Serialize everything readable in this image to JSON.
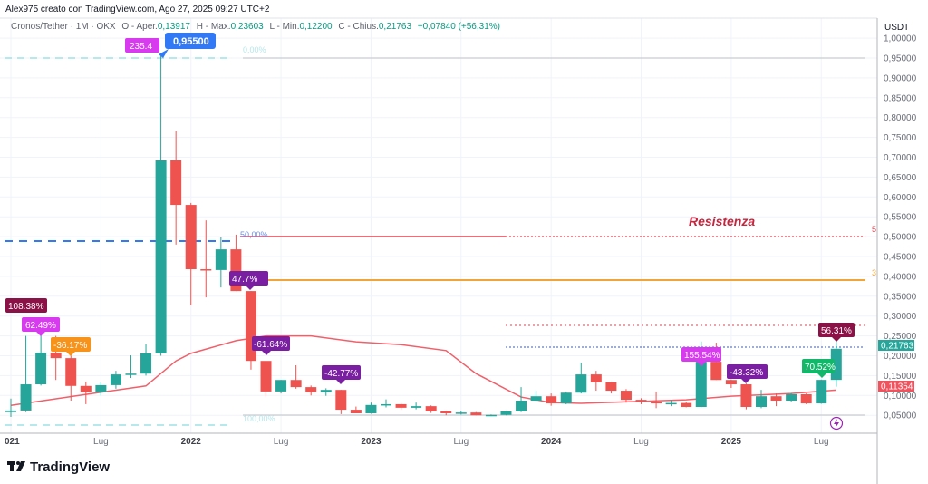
{
  "header": {
    "credit": "Alex975 creato con TradingView.com, Ago 27, 2025 09:27 UTC+2",
    "symbol": "Cronos/Tether · 1M · OKX",
    "open_label": "O - Aper.",
    "open": "0,13917",
    "high_label": "H - Max.",
    "high": "0,23603",
    "low_label": "L - Min.",
    "low": "0,12200",
    "close_label": "C - Chius.",
    "close": "0,21763",
    "change": "+0,07840 (+56,31%)"
  },
  "colors": {
    "up": "#26a69a",
    "down": "#ef5350",
    "ma": "#f0606a",
    "resistance": "#c2273f",
    "fib": "#3179f5",
    "orange": "#f0a53a"
  },
  "axis": {
    "currency": "USDT",
    "price_ticks": [
      "1,00000",
      "0,95000",
      "0,90000",
      "0,85000",
      "0,80000",
      "0,75000",
      "0,70000",
      "0,65000",
      "0,60000",
      "0,55000",
      "0,50000",
      "0,45000",
      "0,40000",
      "0,35000",
      "0,30000",
      "0,25000",
      "0,20000",
      "0,15000",
      "0,10000",
      "0,05000"
    ],
    "time_ticks": [
      {
        "label": "021",
        "date": "2021-01",
        "year": true
      },
      {
        "label": "Lug",
        "date": "2021-07",
        "year": false
      },
      {
        "label": "2022",
        "date": "2022-01",
        "year": true
      },
      {
        "label": "Lug",
        "date": "2022-07",
        "year": false
      },
      {
        "label": "2023",
        "date": "2023-01",
        "year": true
      },
      {
        "label": "Lug",
        "date": "2023-07",
        "year": false
      },
      {
        "label": "2024",
        "date": "2024-01",
        "year": true
      },
      {
        "label": "Lug",
        "date": "2024-07",
        "year": false
      },
      {
        "label": "2025",
        "date": "2025-01",
        "year": true
      },
      {
        "label": "Lug",
        "date": "2025-07",
        "year": false
      }
    ],
    "last_price_tag": "0,21763",
    "ma_price_tag": "0,11354"
  },
  "annotations": {
    "resistance_text": "Resistenza",
    "peak_price": "0,95500",
    "peak_pct": "235.4",
    "fib_0": "0,00%",
    "fib_50": "50,00%",
    "fib_100": "100,00%",
    "line_tag_red": "5",
    "line_tag_orange": "3",
    "pct_labels": [
      "108.38%",
      "62.49%",
      "-36.17%",
      "47.7%",
      "-61.64%",
      "-42.77%",
      "155.54%",
      "-43.32%",
      "70.52%",
      "56.31%"
    ]
  },
  "footer": {
    "logo_text": "TradingView"
  },
  "chart_data": {
    "type": "candlestick",
    "title": "Cronos/Tether · 1M · OKX",
    "ylabel": "USDT",
    "ylim": [
      0,
      1.0
    ],
    "grid": true,
    "candles": [
      [
        "2021-01",
        0.058,
        0.092,
        0.046,
        0.062
      ],
      [
        "2021-02",
        0.062,
        0.25,
        0.058,
        0.128
      ],
      [
        "2021-03",
        0.128,
        0.255,
        0.125,
        0.208
      ],
      [
        "2021-04",
        0.208,
        0.25,
        0.139,
        0.194
      ],
      [
        "2021-05",
        0.194,
        0.2,
        0.087,
        0.124
      ],
      [
        "2021-06",
        0.124,
        0.135,
        0.078,
        0.108
      ],
      [
        "2021-07",
        0.108,
        0.133,
        0.1,
        0.126
      ],
      [
        "2021-08",
        0.126,
        0.162,
        0.117,
        0.153
      ],
      [
        "2021-09",
        0.153,
        0.201,
        0.144,
        0.155
      ],
      [
        "2021-10",
        0.155,
        0.229,
        0.15,
        0.206
      ],
      [
        "2021-11",
        0.206,
        0.955,
        0.2,
        0.692
      ],
      [
        "2021-12",
        0.692,
        0.767,
        0.48,
        0.58
      ],
      [
        "2022-01",
        0.58,
        0.585,
        0.327,
        0.418
      ],
      [
        "2022-02",
        0.418,
        0.541,
        0.347,
        0.416
      ],
      [
        "2022-03",
        0.416,
        0.498,
        0.372,
        0.468
      ],
      [
        "2022-04",
        0.468,
        0.505,
        0.363,
        0.363
      ],
      [
        "2022-05",
        0.363,
        0.363,
        0.165,
        0.187
      ],
      [
        "2022-06",
        0.187,
        0.187,
        0.098,
        0.11
      ],
      [
        "2022-07",
        0.11,
        0.139,
        0.105,
        0.139
      ],
      [
        "2022-08",
        0.139,
        0.176,
        0.117,
        0.121
      ],
      [
        "2022-09",
        0.121,
        0.125,
        0.1,
        0.108
      ],
      [
        "2022-10",
        0.108,
        0.118,
        0.099,
        0.114
      ],
      [
        "2022-11",
        0.114,
        0.114,
        0.053,
        0.064
      ],
      [
        "2022-12",
        0.064,
        0.072,
        0.055,
        0.055
      ],
      [
        "2023-01",
        0.055,
        0.082,
        0.054,
        0.076
      ],
      [
        "2023-02",
        0.076,
        0.09,
        0.07,
        0.078
      ],
      [
        "2023-03",
        0.078,
        0.08,
        0.064,
        0.069
      ],
      [
        "2023-04",
        0.069,
        0.082,
        0.065,
        0.073
      ],
      [
        "2023-05",
        0.073,
        0.075,
        0.056,
        0.06
      ],
      [
        "2023-06",
        0.06,
        0.062,
        0.05,
        0.055
      ],
      [
        "2023-07",
        0.055,
        0.06,
        0.052,
        0.057
      ],
      [
        "2023-08",
        0.057,
        0.058,
        0.05,
        0.05
      ],
      [
        "2023-09",
        0.05,
        0.052,
        0.048,
        0.051
      ],
      [
        "2023-10",
        0.051,
        0.062,
        0.05,
        0.06
      ],
      [
        "2023-11",
        0.06,
        0.121,
        0.058,
        0.087
      ],
      [
        "2023-12",
        0.087,
        0.112,
        0.085,
        0.098
      ],
      [
        "2024-01",
        0.098,
        0.105,
        0.074,
        0.08
      ],
      [
        "2024-02",
        0.08,
        0.11,
        0.078,
        0.107
      ],
      [
        "2024-03",
        0.107,
        0.183,
        0.105,
        0.153
      ],
      [
        "2024-04",
        0.153,
        0.162,
        0.112,
        0.133
      ],
      [
        "2024-05",
        0.133,
        0.135,
        0.105,
        0.112
      ],
      [
        "2024-06",
        0.112,
        0.116,
        0.082,
        0.089
      ],
      [
        "2024-07",
        0.089,
        0.093,
        0.078,
        0.085
      ],
      [
        "2024-08",
        0.085,
        0.11,
        0.068,
        0.08
      ],
      [
        "2024-09",
        0.08,
        0.089,
        0.073,
        0.081
      ],
      [
        "2024-10",
        0.081,
        0.083,
        0.07,
        0.071
      ],
      [
        "2024-11",
        0.071,
        0.236,
        0.07,
        0.185
      ],
      [
        "2024-12",
        0.185,
        0.233,
        0.139,
        0.139
      ],
      [
        "2025-01",
        0.139,
        0.14,
        0.119,
        0.128
      ],
      [
        "2025-02",
        0.128,
        0.13,
        0.065,
        0.071
      ],
      [
        "2025-03",
        0.071,
        0.114,
        0.068,
        0.098
      ],
      [
        "2025-04",
        0.098,
        0.105,
        0.073,
        0.087
      ],
      [
        "2025-05",
        0.087,
        0.106,
        0.085,
        0.103
      ],
      [
        "2025-06",
        0.103,
        0.105,
        0.078,
        0.08
      ],
      [
        "2025-07",
        0.08,
        0.14,
        0.079,
        0.13917
      ],
      [
        "2025-08",
        0.13917,
        0.23603,
        0.122,
        0.21763
      ]
    ],
    "moving_average": [
      [
        "2021-01",
        0.075
      ],
      [
        "2021-07",
        0.108
      ],
      [
        "2021-10",
        0.124
      ],
      [
        "2021-12",
        0.187
      ],
      [
        "2022-01",
        0.206
      ],
      [
        "2022-04",
        0.238
      ],
      [
        "2022-06",
        0.25
      ],
      [
        "2022-09",
        0.25
      ],
      [
        "2022-12",
        0.235
      ],
      [
        "2023-03",
        0.228
      ],
      [
        "2023-06",
        0.213
      ],
      [
        "2023-08",
        0.155
      ],
      [
        "2023-11",
        0.096
      ],
      [
        "2024-01",
        0.082
      ],
      [
        "2024-03",
        0.08
      ],
      [
        "2024-10",
        0.089
      ],
      [
        "2025-01",
        0.098
      ],
      [
        "2025-05",
        0.105
      ],
      [
        "2025-08",
        0.11354
      ]
    ],
    "horizontal_levels": {
      "fib_0": 0.955,
      "fib_50": 0.49,
      "fib_100": 0.025,
      "resistance_red": 0.5,
      "orange_level": 0.395,
      "pink_dotted": 0.275,
      "blue_dotted": 0.22,
      "gray_low": 0.05
    }
  }
}
